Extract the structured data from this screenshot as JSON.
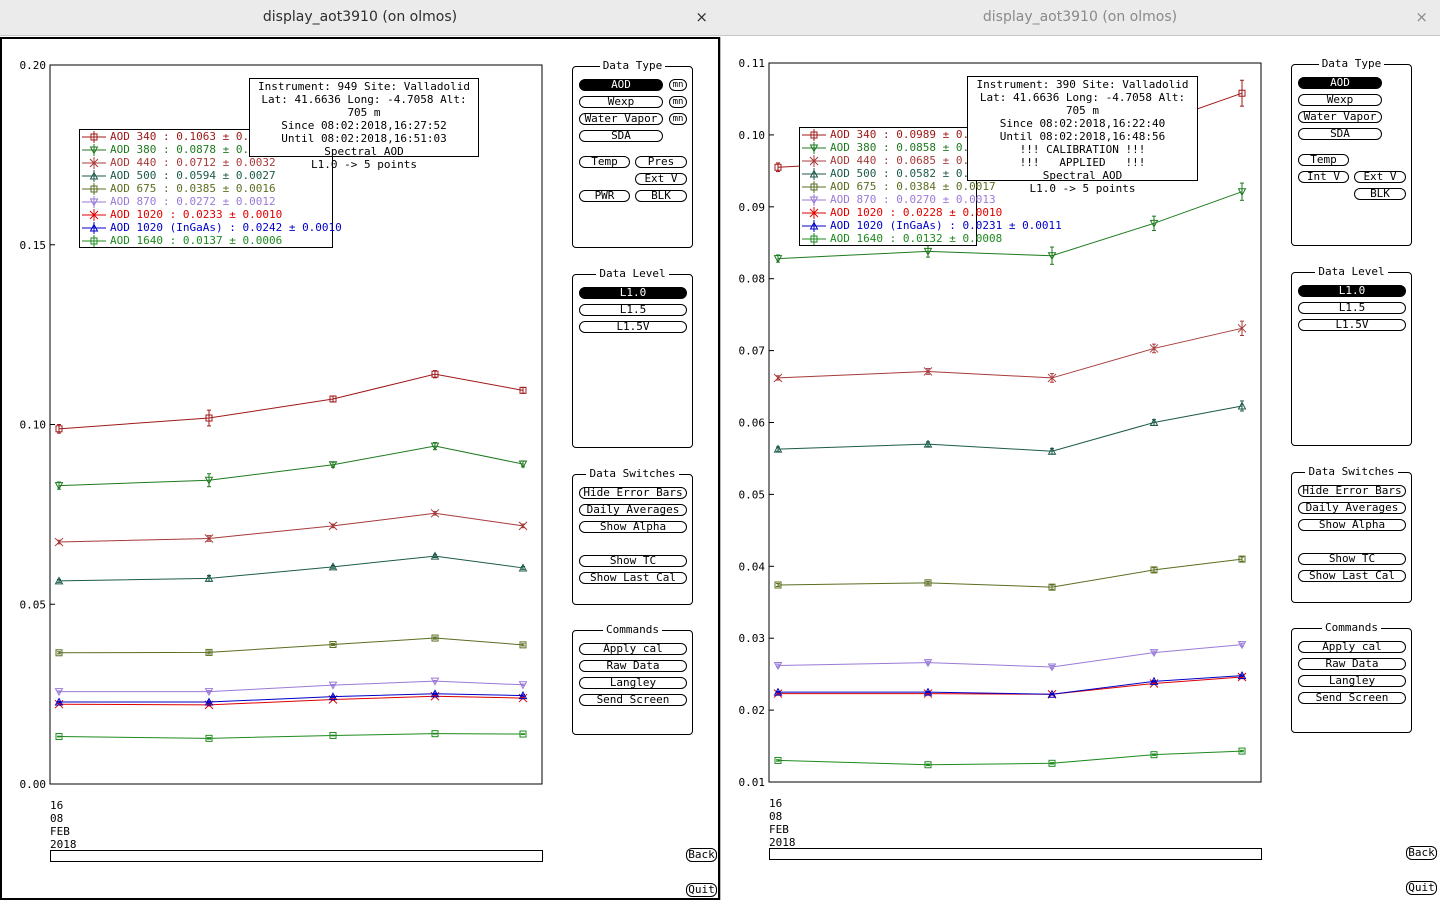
{
  "windows": [
    {
      "title": "display_aot3910 (on olmos)",
      "close": "×",
      "info_lines": [
        "Instrument: 949 Site: Valladolid",
        "Lat: 41.6636 Long: -4.7058 Alt: 705 m",
        "Since 08:02:2018,16:27:52",
        "Until 08:02:2018,16:51:03",
        "Spectral AOD",
        "L1.0 -> 5 points"
      ],
      "legend": [
        {
          "label": "AOD 340",
          "value": ": 0.1063 ± 0.0",
          "color": "#a01818",
          "marker": "square"
        },
        {
          "label": "AOD 380",
          "value": ": 0.0878 ± 0.0",
          "color": "#1e7a1e",
          "marker": "tri-down"
        },
        {
          "label": "AOD 440",
          "value": ": 0.0712 ± 0.0032",
          "color": "#a83a3a",
          "marker": "x"
        },
        {
          "label": "AOD 500",
          "value": ": 0.0594 ± 0.0027",
          "color": "#1c5a4a",
          "marker": "tri-up"
        },
        {
          "label": "AOD 675",
          "value": ": 0.0385 ± 0.0016",
          "color": "#5a6e20",
          "marker": "square"
        },
        {
          "label": "AOD 870",
          "value": ": 0.0272 ± 0.0012",
          "color": "#9a7ad8",
          "marker": "tri-down"
        },
        {
          "label": "AOD 1020",
          "value": " : 0.0233 ± 0.0010",
          "color": "#e00000",
          "marker": "x"
        },
        {
          "label": "AOD 1020 (InGaAs)",
          "value": " : 0.0242 ± 0.0010",
          "color": "#0000c8",
          "marker": "tri-up"
        },
        {
          "label": "AOD 1640",
          "value": " : 0.0137 ± 0.0006",
          "color": "#1e8a1e",
          "marker": "square"
        }
      ],
      "chart_data": {
        "type": "line",
        "ylim": [
          0.0,
          0.2
        ],
        "yticks": [
          "0.20",
          "0.15",
          "0.10",
          "0.05",
          "0.00"
        ],
        "yticks_values": [
          0.2,
          0.15,
          0.1,
          0.05,
          0.0
        ],
        "x_label_lines": [
          "16",
          "08",
          "FEB",
          "2018"
        ],
        "x": [
          1,
          2,
          3,
          4,
          5
        ],
        "series": [
          {
            "name": "AOD 340",
            "color": "#a01818",
            "marker": "square",
            "values": [
              0.0988,
              0.1018,
              0.1071,
              0.114,
              0.1095
            ],
            "err": [
              0.0012,
              0.0022,
              0.0008,
              0.001,
              0.0008
            ]
          },
          {
            "name": "AOD 380",
            "color": "#1e7a1e",
            "marker": "tri-down",
            "values": [
              0.083,
              0.0845,
              0.0888,
              0.094,
              0.089
            ],
            "err": [
              0.001,
              0.0018,
              0.0007,
              0.001,
              0.0008
            ]
          },
          {
            "name": "AOD 440",
            "color": "#a83a3a",
            "marker": "x",
            "values": [
              0.0673,
              0.0683,
              0.0718,
              0.0753,
              0.0718
            ],
            "err": [
              0.0005,
              0.0008,
              0.0005,
              0.0005,
              0.0005
            ]
          },
          {
            "name": "AOD 500",
            "color": "#1c5a4a",
            "marker": "tri-up",
            "values": [
              0.0565,
              0.0572,
              0.0604,
              0.0634,
              0.0601
            ],
            "err": [
              0.0004,
              0.0008,
              0.0004,
              0.0004,
              0.0004
            ]
          },
          {
            "name": "AOD 675",
            "color": "#5a6e20",
            "marker": "square",
            "values": [
              0.0365,
              0.0366,
              0.0388,
              0.0406,
              0.0387
            ],
            "err": [
              0.0003,
              0.0004,
              0.0003,
              0.0003,
              0.0003
            ]
          },
          {
            "name": "AOD 870",
            "color": "#9a7ad8",
            "marker": "tri-down",
            "values": [
              0.0257,
              0.0257,
              0.0275,
              0.0286,
              0.0276
            ],
            "err": [
              0.0002,
              0.0003,
              0.0002,
              0.0002,
              0.0002
            ]
          },
          {
            "name": "AOD 1020",
            "color": "#e00000",
            "marker": "x",
            "values": [
              0.0222,
              0.022,
              0.0235,
              0.0244,
              0.0239
            ],
            "err": [
              0.0002,
              0.0003,
              0.0002,
              0.0002,
              0.0002
            ]
          },
          {
            "name": "AOD 1020 (InGaAs)",
            "color": "#0000c8",
            "marker": "tri-up",
            "values": [
              0.0228,
              0.0228,
              0.0243,
              0.0251,
              0.0246
            ],
            "err": [
              0.0002,
              0.0003,
              0.0002,
              0.0002,
              0.0002
            ]
          },
          {
            "name": "AOD 1640",
            "color": "#1e8a1e",
            "marker": "square",
            "values": [
              0.0132,
              0.0127,
              0.0135,
              0.014,
              0.0139
            ],
            "err": [
              0.0001,
              0.0002,
              0.0001,
              0.0001,
              0.0001
            ]
          }
        ]
      },
      "panels": {
        "data_type": {
          "title": "Data Type",
          "buttons": [
            "AOD",
            "Wexp",
            "Water Vapor",
            "SDA",
            "Temp",
            "Pres",
            "Ext V",
            "PWR",
            "BLK"
          ],
          "mn": [
            "mn",
            "mn",
            "mn"
          ]
        },
        "data_level": {
          "title": "Data Level",
          "buttons": [
            "L1.0",
            "L1.5",
            "L1.5V"
          ]
        },
        "data_switches": {
          "title": "Data Switches",
          "buttons": [
            "Hide Error Bars",
            "Daily Averages",
            "Show Alpha",
            "Show TC",
            "Show Last Cal"
          ]
        },
        "commands": {
          "title": "Commands",
          "buttons": [
            "Apply cal",
            "Raw Data",
            "Langley",
            "Send Screen"
          ]
        }
      },
      "back": "Back",
      "quit": "Quit"
    },
    {
      "title": "display_aot3910 (on olmos)",
      "close": "×",
      "info_lines": [
        "Instrument: 390 Site: Valladolid",
        "Lat: 41.6636 Long: -4.7058 Alt: 705 m",
        "Since 08:02:2018,16:22:40",
        "Until 08:02:2018,16:48:56",
        "!!! CALIBRATION !!!",
        "!!!   APPLIED   !!!",
        "Spectral AOD",
        "L1.0 -> 5 points"
      ],
      "legend": [
        {
          "label": "AOD 340",
          "value": ": 0.0989 ± 0.0",
          "color": "#a01818",
          "marker": "square"
        },
        {
          "label": "AOD 380",
          "value": ": 0.0858 ± 0.0",
          "color": "#1e7a1e",
          "marker": "tri-down"
        },
        {
          "label": "AOD 440",
          "value": ": 0.0685 ± 0.0",
          "color": "#a83a3a",
          "marker": "x"
        },
        {
          "label": "AOD 500",
          "value": ": 0.0582 ± 0.0",
          "color": "#1c5a4a",
          "marker": "tri-up"
        },
        {
          "label": "AOD 675",
          "value": ": 0.0384 ± 0.0017",
          "color": "#5a6e20",
          "marker": "square"
        },
        {
          "label": "AOD 870",
          "value": ": 0.0270 ± 0.0013",
          "color": "#9a7ad8",
          "marker": "tri-down"
        },
        {
          "label": "AOD 1020",
          "value": " : 0.0228 ± 0.0010",
          "color": "#e00000",
          "marker": "x"
        },
        {
          "label": "AOD 1020 (InGaAs)",
          "value": " : 0.0231 ± 0.0011",
          "color": "#0000c8",
          "marker": "tri-up"
        },
        {
          "label": "AOD 1640",
          "value": " : 0.0132 ± 0.0008",
          "color": "#1e8a1e",
          "marker": "square"
        }
      ],
      "chart_data": {
        "type": "line",
        "ylim": [
          0.01,
          0.11
        ],
        "yticks": [
          "0.11",
          "0.10",
          "0.09",
          "0.08",
          "0.07",
          "0.06",
          "0.05",
          "0.04",
          "0.03",
          "0.02",
          "0.01"
        ],
        "yticks_values": [
          0.11,
          0.1,
          0.09,
          0.08,
          0.07,
          0.06,
          0.05,
          0.04,
          0.03,
          0.02,
          0.01
        ],
        "x_label_lines": [
          "16",
          "08",
          "FEB",
          "2018"
        ],
        "x": [
          1,
          2,
          3,
          4,
          5
        ],
        "series": [
          {
            "name": "AOD 340",
            "color": "#a01818",
            "marker": "square",
            "values": [
              0.0955,
              0.0966,
              0.0972,
              0.1015,
              0.1058
            ],
            "err": [
              0.0006,
              0.001,
              0.0015,
              0.0012,
              0.0018
            ]
          },
          {
            "name": "AOD 380",
            "color": "#1e7a1e",
            "marker": "tri-down",
            "values": [
              0.0828,
              0.0838,
              0.0832,
              0.0877,
              0.0921
            ],
            "err": [
              0.0005,
              0.0008,
              0.0012,
              0.001,
              0.0012
            ]
          },
          {
            "name": "AOD 440",
            "color": "#a83a3a",
            "marker": "x",
            "values": [
              0.0662,
              0.0671,
              0.0662,
              0.0703,
              0.0731
            ],
            "err": [
              0.0003,
              0.0004,
              0.0006,
              0.0006,
              0.001
            ]
          },
          {
            "name": "AOD 500",
            "color": "#1c5a4a",
            "marker": "tri-up",
            "values": [
              0.0563,
              0.057,
              0.056,
              0.06,
              0.0623
            ],
            "err": [
              0.0003,
              0.0003,
              0.0004,
              0.0004,
              0.0007
            ]
          },
          {
            "name": "AOD 675",
            "color": "#5a6e20",
            "marker": "square",
            "values": [
              0.0374,
              0.0377,
              0.0371,
              0.0395,
              0.041
            ],
            "err": [
              0.0002,
              0.0002,
              0.0003,
              0.0003,
              0.0003
            ]
          },
          {
            "name": "AOD 870",
            "color": "#9a7ad8",
            "marker": "tri-down",
            "values": [
              0.0262,
              0.0266,
              0.026,
              0.028,
              0.0291
            ],
            "err": [
              0.0002,
              0.0002,
              0.0002,
              0.0002,
              0.0002
            ]
          },
          {
            "name": "AOD 1020",
            "color": "#e00000",
            "marker": "x",
            "values": [
              0.0223,
              0.0223,
              0.0222,
              0.0237,
              0.0246
            ],
            "err": [
              0.0001,
              0.0001,
              0.0001,
              0.0001,
              0.0001
            ]
          },
          {
            "name": "AOD 1020 (InGaAs)",
            "color": "#0000c8",
            "marker": "tri-up",
            "values": [
              0.0225,
              0.0225,
              0.0222,
              0.024,
              0.0248
            ],
            "err": [
              0.0001,
              0.0001,
              0.0001,
              0.0001,
              0.0001
            ]
          },
          {
            "name": "AOD 1640",
            "color": "#1e8a1e",
            "marker": "square",
            "values": [
              0.013,
              0.0124,
              0.0126,
              0.0138,
              0.0143
            ],
            "err": [
              0.0001,
              0.0001,
              0.0001,
              0.0001,
              0.0001
            ]
          }
        ]
      },
      "panels": {
        "data_type": {
          "title": "Data Type",
          "buttons": [
            "AOD",
            "Wexp",
            "Water Vapor",
            "SDA",
            "Temp",
            "Int V",
            "Ext V",
            "BLK"
          ],
          "mn": []
        },
        "data_level": {
          "title": "Data Level",
          "buttons": [
            "L1.0",
            "L1.5",
            "L1.5V"
          ]
        },
        "data_switches": {
          "title": "Data Switches",
          "buttons": [
            "Hide Error Bars",
            "Daily Averages",
            "Show Alpha",
            "Show TC",
            "Show Last Cal"
          ]
        },
        "commands": {
          "title": "Commands",
          "buttons": [
            "Apply cal",
            "Raw Data",
            "Langley",
            "Send Screen"
          ]
        }
      },
      "back": "Back",
      "quit": "Quit"
    }
  ]
}
